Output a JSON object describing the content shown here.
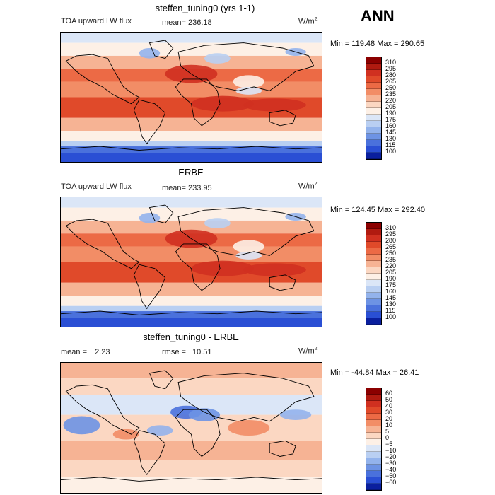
{
  "season": "ANN",
  "panels": [
    {
      "title": "steffen_tuning0 (yrs 1-1)",
      "left_label": "TOA upward LW flux",
      "mean_label": "mean=",
      "mean_value": "236.18",
      "units": "W/m",
      "units_sup": "2",
      "min_label": "Min =",
      "min_value": "119.48",
      "max_label": "Max =",
      "max_value": "290.65"
    },
    {
      "title": "ERBE",
      "left_label": "TOA upward LW flux",
      "mean_label": "mean=",
      "mean_value": "233.95",
      "units": "W/m",
      "units_sup": "2",
      "min_label": "Min =",
      "min_value": "124.45",
      "max_label": "Max =",
      "max_value": "292.40"
    },
    {
      "title": "steffen_tuning0 - ERBE",
      "left_label": "mean =",
      "left_value": "2.23",
      "mean_label": "rmse =",
      "mean_value": "10.51",
      "units": "W/m",
      "units_sup": "2",
      "min_label": "Min =",
      "min_value": "-44.84",
      "max_label": "Max =",
      "max_value": "26.41"
    }
  ],
  "colorbars": [
    {
      "levels": [
        "310",
        "295",
        "280",
        "265",
        "250",
        "235",
        "220",
        "205",
        "190",
        "175",
        "160",
        "145",
        "130",
        "115",
        "100"
      ],
      "colors": [
        "#8b0000",
        "#b01a10",
        "#d03020",
        "#e04a2a",
        "#ec6a45",
        "#f28d66",
        "#f6b394",
        "#fbd7c2",
        "#fdf0e6",
        "#dbe6f7",
        "#b9cff2",
        "#93b3ec",
        "#6d93e4",
        "#4a71dc",
        "#2a4fd4",
        "#0a1f9e"
      ]
    },
    {
      "levels": [
        "310",
        "295",
        "280",
        "265",
        "250",
        "235",
        "220",
        "205",
        "190",
        "175",
        "160",
        "145",
        "130",
        "115",
        "100"
      ],
      "colors": [
        "#8b0000",
        "#b01a10",
        "#d03020",
        "#e04a2a",
        "#ec6a45",
        "#f28d66",
        "#f6b394",
        "#fbd7c2",
        "#fdf0e6",
        "#dbe6f7",
        "#b9cff2",
        "#93b3ec",
        "#6d93e4",
        "#4a71dc",
        "#2a4fd4",
        "#0a1f9e"
      ]
    },
    {
      "levels": [
        "60",
        "50",
        "40",
        "30",
        "20",
        "10",
        "5",
        "0",
        "−5",
        "−10",
        "−20",
        "−30",
        "−40",
        "−50",
        "−60"
      ],
      "colors": [
        "#8b0000",
        "#b01a10",
        "#d03020",
        "#e04a2a",
        "#ec6a45",
        "#f28d66",
        "#f6b394",
        "#fbd7c2",
        "#fdf0e6",
        "#dbe6f7",
        "#b9cff2",
        "#93b3ec",
        "#6d93e4",
        "#4a71dc",
        "#2a4fd4",
        "#0a1f9e"
      ]
    }
  ],
  "chart_data": [
    {
      "type": "heatmap",
      "title": "steffen_tuning0 (yrs 1-1)",
      "variable": "TOA upward LW flux",
      "units": "W/m2",
      "mean": 236.18,
      "min": 119.48,
      "max": 290.65,
      "contour_levels": [
        100,
        115,
        130,
        145,
        160,
        175,
        190,
        205,
        220,
        235,
        250,
        265,
        280,
        295,
        310
      ]
    },
    {
      "type": "heatmap",
      "title": "ERBE",
      "variable": "TOA upward LW flux",
      "units": "W/m2",
      "mean": 233.95,
      "min": 124.45,
      "max": 292.4,
      "contour_levels": [
        100,
        115,
        130,
        145,
        160,
        175,
        190,
        205,
        220,
        235,
        250,
        265,
        280,
        295,
        310
      ]
    },
    {
      "type": "heatmap",
      "title": "steffen_tuning0 - ERBE",
      "units": "W/m2",
      "mean": 2.23,
      "rmse": 10.51,
      "min": -44.84,
      "max": 26.41,
      "contour_levels": [
        -60,
        -50,
        -40,
        -30,
        -20,
        -10,
        -5,
        0,
        5,
        10,
        20,
        30,
        40,
        50,
        60
      ]
    }
  ]
}
